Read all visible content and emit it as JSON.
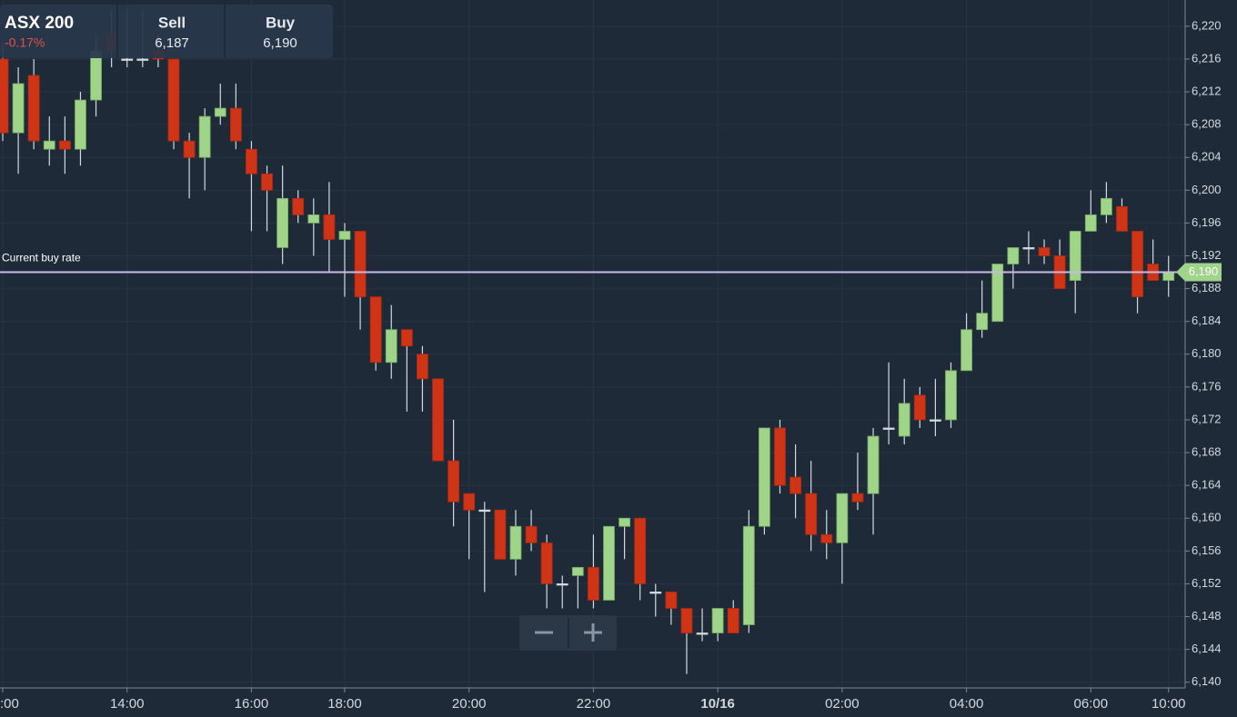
{
  "header": {
    "title": "ASX 200",
    "change": "-0.17%",
    "sell_label": "Sell",
    "sell_value": "6,187",
    "buy_label": "Buy",
    "buy_value": "6,190"
  },
  "chart_data": {
    "type": "candlestick",
    "categories": [
      ":00",
      null,
      null,
      null,
      null,
      null,
      null,
      null,
      "14:00",
      null,
      null,
      null,
      null,
      null,
      null,
      null,
      "16:00",
      null,
      null,
      null,
      null,
      null,
      "18:00",
      null,
      null,
      null,
      null,
      null,
      null,
      null,
      "20:00",
      null,
      null,
      null,
      null,
      null,
      null,
      null,
      "22:00",
      null,
      null,
      null,
      null,
      null,
      null,
      null,
      "10/16",
      null,
      null,
      null,
      null,
      null,
      null,
      null,
      "02:00",
      null,
      null,
      null,
      null,
      null,
      null,
      null,
      "04:00",
      null,
      null,
      null,
      null,
      null,
      null,
      null,
      "06:00",
      null,
      null,
      null,
      null,
      "10:00"
    ],
    "open": [
      6216,
      6207,
      6214,
      6205,
      6206,
      6205,
      6211,
      6219,
      6216,
      6216,
      6217,
      6216,
      6206,
      6204,
      6209,
      6210,
      6205,
      6202,
      6193,
      6199,
      6196,
      6197,
      6194,
      6195,
      6187,
      6179,
      6183,
      6180,
      6177,
      6167,
      6163,
      6161,
      6161,
      6155,
      6159,
      6157,
      6152,
      6153,
      6154,
      6150,
      6159,
      6160,
      6151,
      6151,
      6149,
      6146,
      6146,
      6149,
      6147,
      6159,
      6171,
      6165,
      6163,
      6158,
      6157,
      6163,
      6163,
      6171,
      6170,
      6175,
      6172,
      6172,
      6178,
      6183,
      6184,
      6191,
      6193,
      6193,
      6192,
      6189,
      6195,
      6197,
      6198,
      6195,
      6191,
      6189
    ],
    "high": [
      6218,
      6215,
      6216,
      6209,
      6209,
      6212,
      6219,
      6222,
      6222,
      6222,
      6219,
      6216,
      6207,
      6210,
      6213,
      6213,
      6206,
      6203,
      6203,
      6200,
      6199,
      6201,
      6196,
      6195,
      6187,
      6186,
      6183,
      6181,
      6177,
      6172,
      6163,
      6162,
      6161,
      6161,
      6161,
      6158,
      6153,
      6154,
      6158,
      6159,
      6160,
      6160,
      6152,
      6151,
      6149,
      6149,
      6149,
      6150,
      6161,
      6171,
      6172,
      6169,
      6167,
      6161,
      6163,
      6168,
      6171,
      6179,
      6177,
      6176,
      6177,
      6179,
      6185,
      6189,
      6191,
      6193,
      6195,
      6194,
      6194,
      6195,
      6200,
      6201,
      6199,
      6195,
      6194,
      6192
    ],
    "low": [
      6206,
      6202,
      6205,
      6203,
      6202,
      6203,
      6209,
      6215,
      6215,
      6215,
      6215,
      6205,
      6199,
      6200,
      6208,
      6205,
      6195,
      6195,
      6191,
      6196,
      6192,
      6190,
      6187,
      6183,
      6178,
      6177,
      6173,
      6173,
      6167,
      6159,
      6155,
      6151,
      6155,
      6153,
      6156,
      6149,
      6149,
      6149,
      6149,
      6150,
      6155,
      6150,
      6148,
      6147,
      6141,
      6145,
      6145,
      6146,
      6146,
      6158,
      6163,
      6160,
      6156,
      6155,
      6152,
      6161,
      6158,
      6169,
      6169,
      6171,
      6170,
      6171,
      6178,
      6182,
      6184,
      6188,
      6191,
      6191,
      6188,
      6185,
      6195,
      6196,
      6195,
      6185,
      6189,
      6187
    ],
    "close": [
      6207,
      6213,
      6206,
      6206,
      6205,
      6211,
      6217,
      6217,
      6216,
      6216,
      6216,
      6206,
      6204,
      6209,
      6210,
      6206,
      6202,
      6200,
      6199,
      6197,
      6197,
      6194,
      6195,
      6187,
      6179,
      6183,
      6181,
      6177,
      6167,
      6162,
      6161,
      6161,
      6155,
      6159,
      6157,
      6152,
      6152,
      6154,
      6150,
      6159,
      6160,
      6152,
      6151,
      6149,
      6146,
      6146,
      6149,
      6146,
      6159,
      6171,
      6164,
      6163,
      6158,
      6157,
      6163,
      6162,
      6170,
      6171,
      6174,
      6172,
      6172,
      6178,
      6183,
      6185,
      6191,
      6193,
      6193,
      6192,
      6188,
      6195,
      6197,
      6199,
      6195,
      6187,
      6189,
      6190
    ],
    "up_color": "#9fd48a",
    "down_color": "#cf3417",
    "wick_color": "#d5d9de",
    "ylim": [
      6139.3,
      6223.2
    ],
    "yticks": [
      {
        "value": 6140,
        "label": "6,140"
      },
      {
        "value": 6144,
        "label": "6,144"
      },
      {
        "value": 6148,
        "label": "6,148"
      },
      {
        "value": 6152,
        "label": "6,152"
      },
      {
        "value": 6156,
        "label": "6,156"
      },
      {
        "value": 6160,
        "label": "6,160"
      },
      {
        "value": 6164,
        "label": "6,164"
      },
      {
        "value": 6168,
        "label": "6,168"
      },
      {
        "value": 6172,
        "label": "6,172"
      },
      {
        "value": 6176,
        "label": "6,176"
      },
      {
        "value": 6180,
        "label": "6,180"
      },
      {
        "value": 6184,
        "label": "6,184"
      },
      {
        "value": 6188,
        "label": "6,188"
      },
      {
        "value": 6192,
        "label": "6,192"
      },
      {
        "value": 6196,
        "label": "6,196"
      },
      {
        "value": 6200,
        "label": "6,200"
      },
      {
        "value": 6204,
        "label": "6,204"
      },
      {
        "value": 6208,
        "label": "6,208"
      },
      {
        "value": 6212,
        "label": "6,212"
      },
      {
        "value": 6216,
        "label": "6,216"
      },
      {
        "value": 6220,
        "label": "6,220"
      }
    ],
    "grid": true,
    "reference_line": {
      "label": "Current buy rate",
      "value": 6190,
      "value_label": "6,190",
      "color": "#c7b9e6"
    }
  }
}
